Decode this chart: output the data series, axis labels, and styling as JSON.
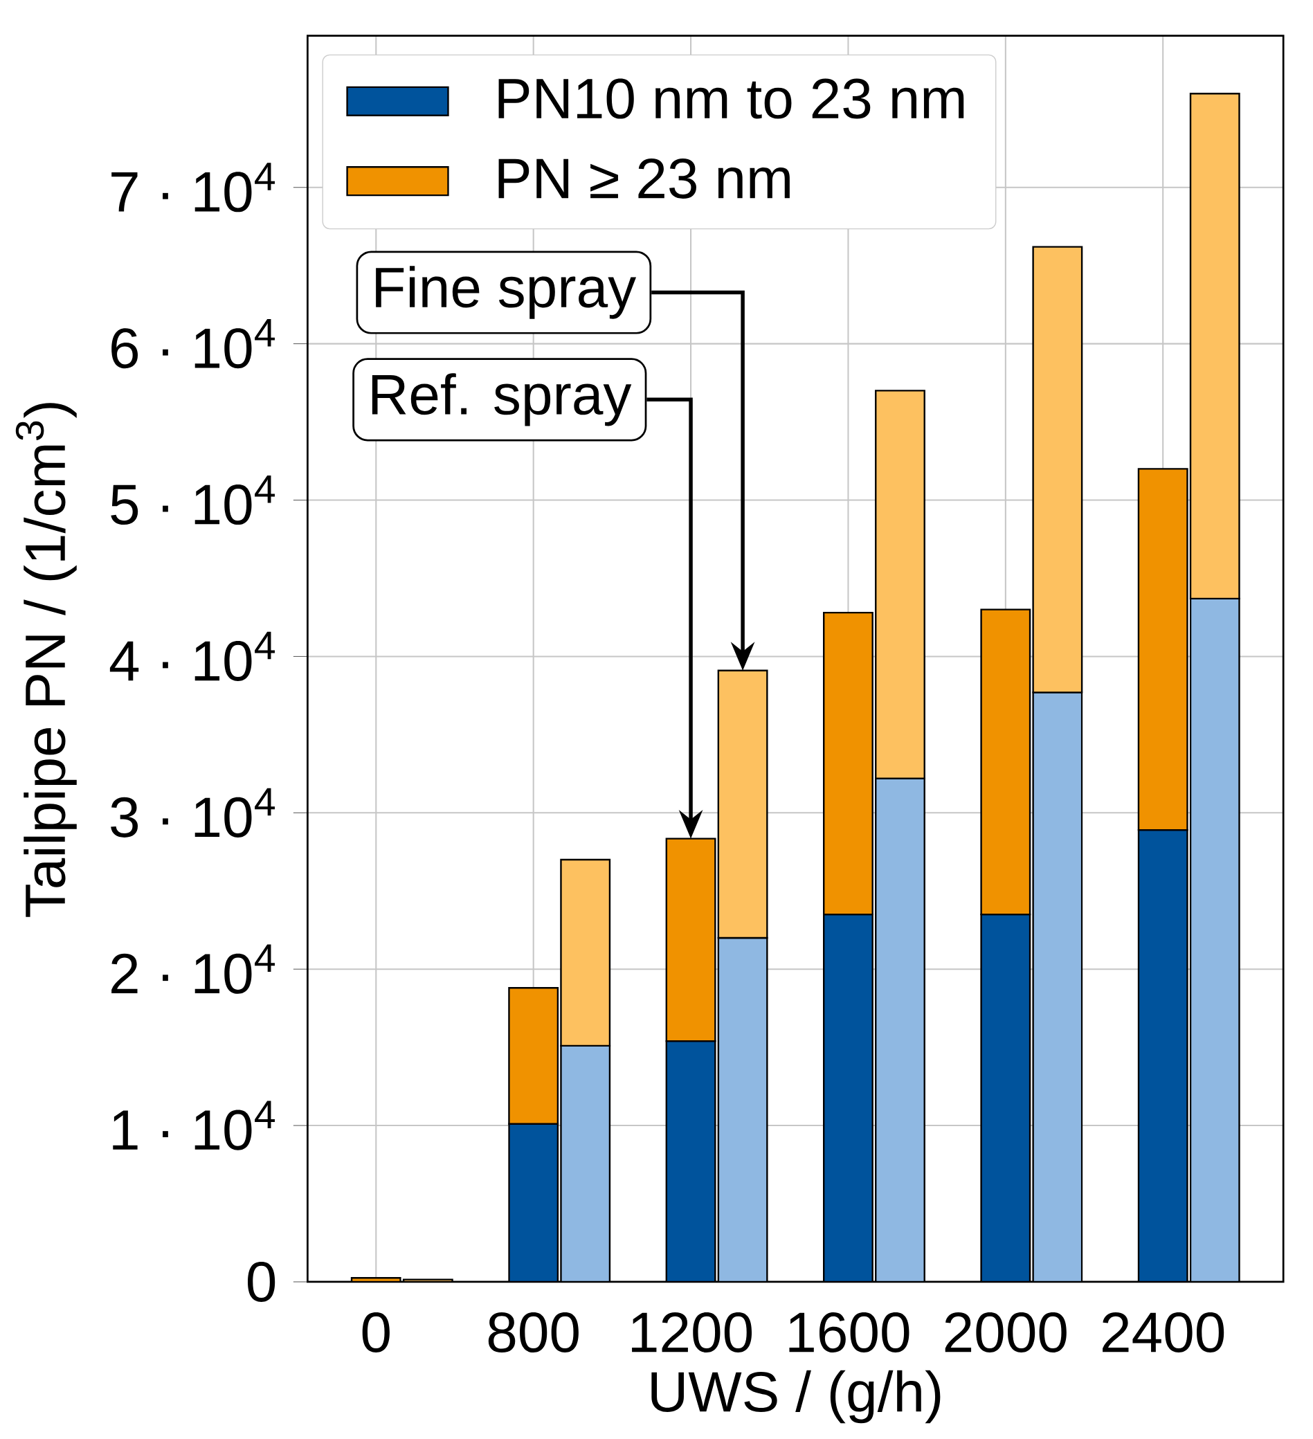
{
  "chart_data": {
    "type": "bar",
    "stacked": true,
    "xlabel": "UWS / (g/h)",
    "ylabel": "Tailpipe PN / (1/cm$^{3}$)",
    "categories": [
      "0",
      null,
      "800",
      null,
      "1200",
      null,
      "1600",
      null,
      "2000",
      null,
      "2400",
      null
    ],
    "series": [
      {
        "name": "PN10 nm to 23 nm",
        "color": "#00539c",
        "colors": [
          "#00539c",
          "#8fb8e2",
          "#00539c",
          "#8fb8e2",
          "#00539c",
          "#8fb8e2",
          "#00539c",
          "#8fb8e2",
          "#00539c",
          "#8fb8e2",
          "#00539c",
          "#8fb8e2"
        ],
        "values": [
          0,
          0,
          10100,
          15100,
          15400,
          22000,
          23500,
          32200,
          23500,
          37700,
          28900,
          43700
        ]
      },
      {
        "name": "PN ≥ 23 nm",
        "color": "#f09200",
        "colors": [
          "#f09200",
          "#fdc160",
          "#f09200",
          "#fdc160",
          "#f09200",
          "#fdc160",
          "#f09200",
          "#fdc160",
          "#f09200",
          "#fdc160",
          "#f09200",
          "#fdc160"
        ],
        "values": [
          250,
          150,
          8700,
          11900,
          12950,
          17100,
          19300,
          24800,
          19500,
          28500,
          23100,
          32300
        ]
      }
    ],
    "ylim": [
      0,
      79700
    ],
    "yticks": [
      0,
      {
        "value": 10000,
        "label": "1 · 10$^{4}$"
      },
      {
        "value": 20000,
        "label": "2 · 10$^{4}$"
      },
      {
        "value": 30000,
        "label": "3 · 10$^{4}$"
      },
      {
        "value": 40000,
        "label": "4 · 10$^{4}$"
      },
      {
        "value": 50000,
        "label": "5 · 10$^{4}$"
      },
      {
        "value": 60000,
        "label": "6 · 10$^{4}$"
      },
      {
        "value": 70000,
        "label": "7 · 10$^{4}$"
      }
    ],
    "grid": true,
    "legend": "top left",
    "annotations": [
      "Ref. spray",
      "Fine spray"
    ]
  }
}
